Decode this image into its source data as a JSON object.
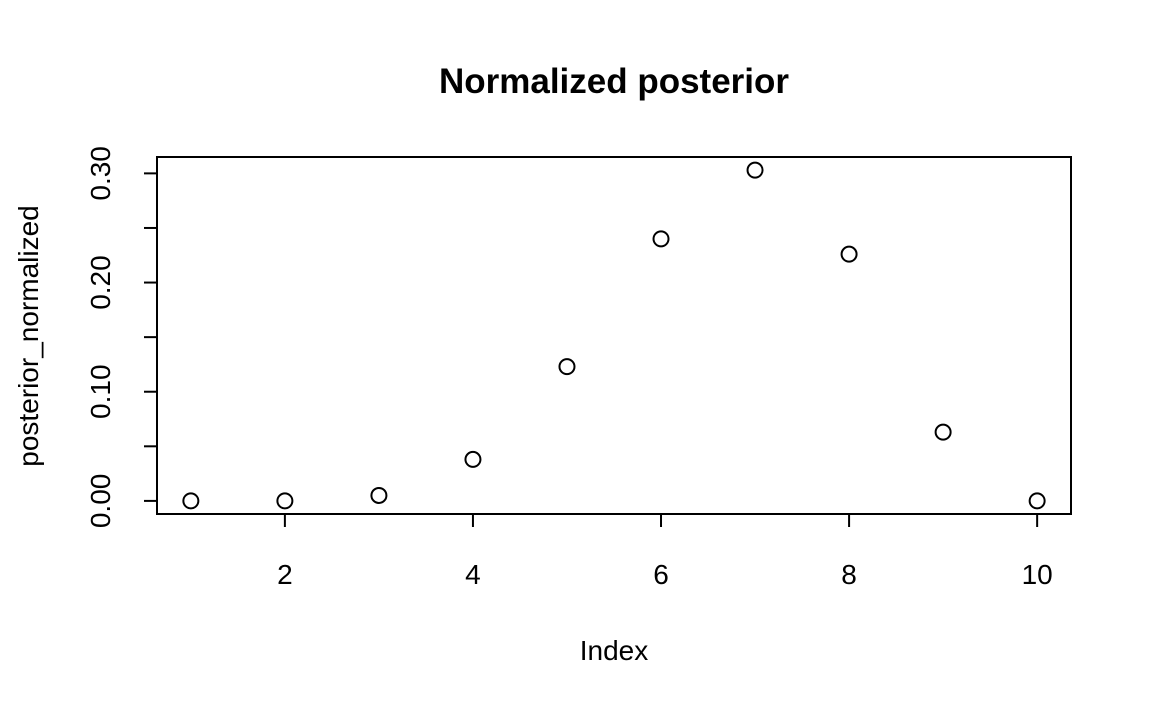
{
  "chart_data": {
    "type": "scatter",
    "title": "Normalized posterior",
    "xlabel": "Index",
    "ylabel": "posterior_normalized",
    "x": [
      1,
      2,
      3,
      4,
      5,
      6,
      7,
      8,
      9,
      10
    ],
    "y": [
      0.0,
      0.0,
      0.005,
      0.038,
      0.123,
      0.24,
      0.303,
      0.226,
      0.063,
      0.0
    ],
    "xlim": [
      0.64,
      10.36
    ],
    "ylim": [
      -0.012,
      0.315
    ],
    "xticks": [
      2,
      4,
      6,
      8,
      10
    ],
    "xtick_labels": [
      "2",
      "4",
      "6",
      "8",
      "10"
    ],
    "yticks": [
      0.0,
      0.05,
      0.1,
      0.15,
      0.2,
      0.25,
      0.3
    ],
    "ytick_labels": [
      "0.00",
      "",
      "0.10",
      "",
      "0.20",
      "",
      "0.30"
    ],
    "grid": false,
    "marker": "open-circle",
    "marker_color": "#000000"
  }
}
